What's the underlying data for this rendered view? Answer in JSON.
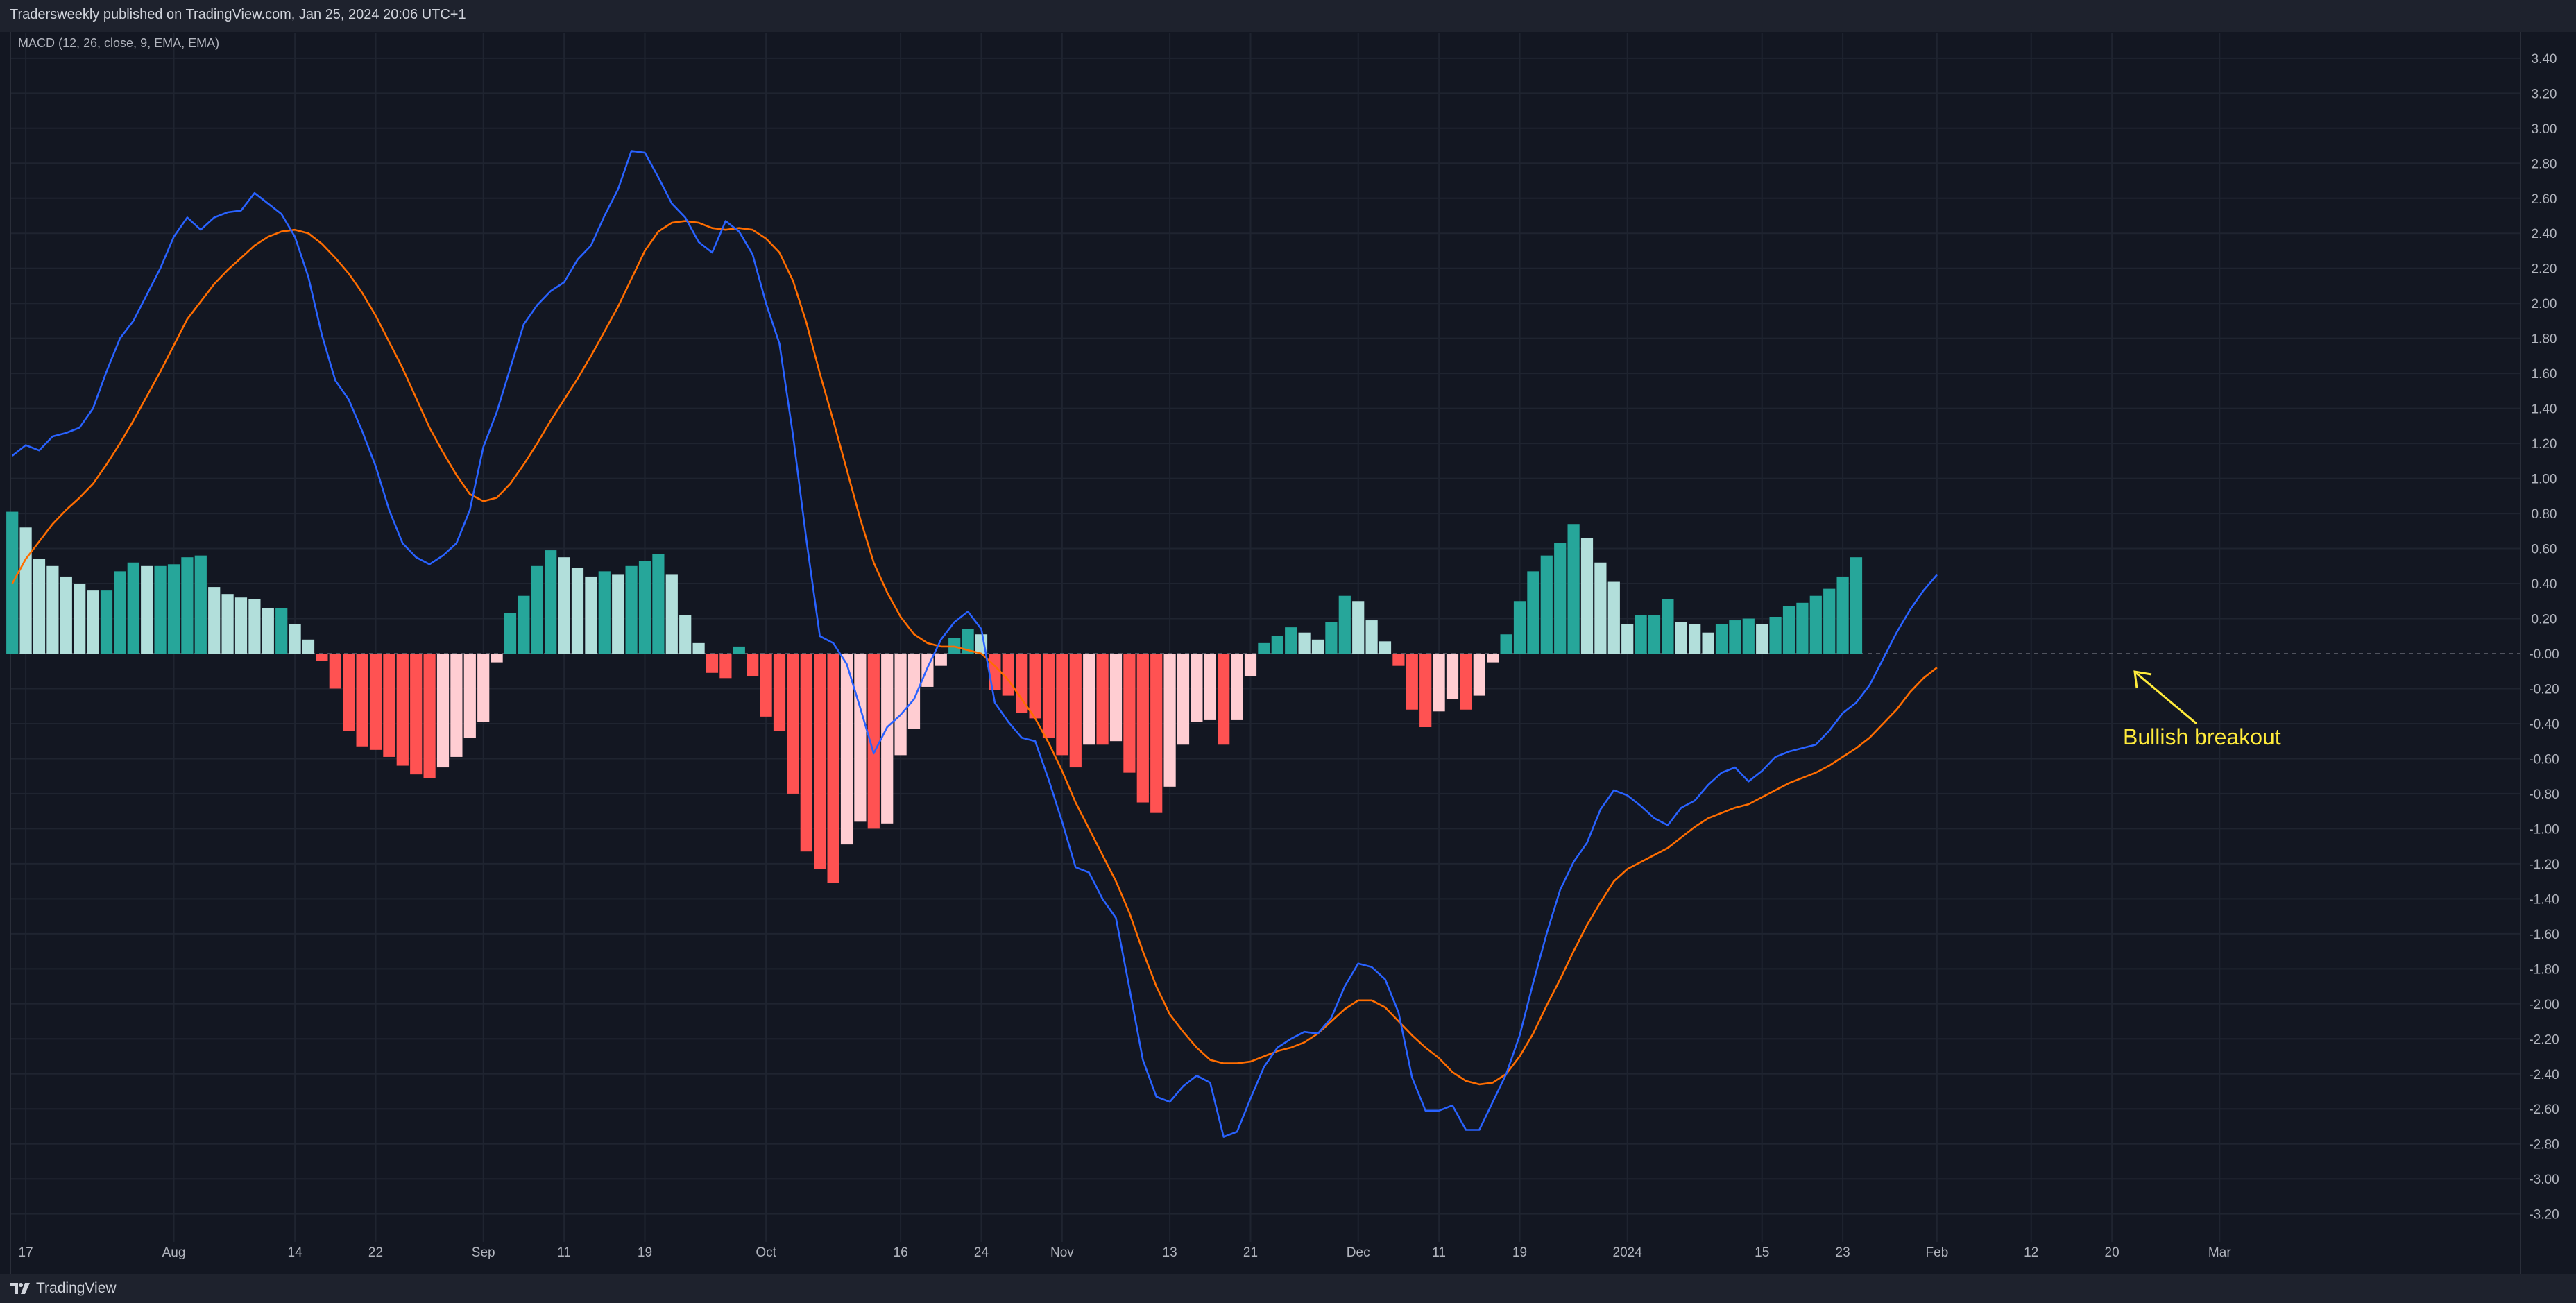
{
  "header": {
    "published": "Tradersweekly published on TradingView.com, Jan 25, 2024 20:06 UTC+1"
  },
  "indicator": {
    "legend": "MACD (12, 26, close, 9, EMA, EMA)"
  },
  "brand": {
    "name": "TradingView"
  },
  "annotation": {
    "text": "Bullish breakout",
    "color": "#ffeb3b"
  },
  "colors": {
    "background": "#131722",
    "macd_line": "#2962ff",
    "signal_line": "#ff6d00",
    "hist_pos_rising": "#26a69a",
    "hist_pos_falling": "#b2dfdb",
    "hist_neg_falling": "#ff5252",
    "hist_neg_rising": "#ffcdd2",
    "axis_text": "#b2b5be",
    "grid": "#1f2430"
  },
  "chart_data": {
    "type": "line",
    "y_ticks": [
      "3.40",
      "3.20",
      "3.00",
      "2.80",
      "2.60",
      "2.40",
      "2.20",
      "2.00",
      "1.80",
      "1.60",
      "1.40",
      "1.20",
      "1.00",
      "0.80",
      "0.60",
      "0.40",
      "0.20",
      "-0.00",
      "-0.20",
      "-0.40",
      "-0.60",
      "-0.80",
      "-1.00",
      "-1.20",
      "-1.40",
      "-1.60",
      "-1.80",
      "-2.00",
      "-2.20",
      "-2.40",
      "-2.60",
      "-2.80",
      "-3.00",
      "-3.20"
    ],
    "ylim": [
      -3.4,
      3.5
    ],
    "x_ticks": [
      {
        "label": "17",
        "bar": 1
      },
      {
        "label": "Aug",
        "bar": 12
      },
      {
        "label": "14",
        "bar": 21
      },
      {
        "label": "22",
        "bar": 27
      },
      {
        "label": "Sep",
        "bar": 35
      },
      {
        "label": "11",
        "bar": 41
      },
      {
        "label": "19",
        "bar": 47
      },
      {
        "label": "Oct",
        "bar": 56
      },
      {
        "label": "16",
        "bar": 66
      },
      {
        "label": "24",
        "bar": 72
      },
      {
        "label": "Nov",
        "bar": 78
      },
      {
        "label": "13",
        "bar": 86
      },
      {
        "label": "21",
        "bar": 92
      },
      {
        "label": "Dec",
        "bar": 100
      },
      {
        "label": "11",
        "bar": 106
      },
      {
        "label": "19",
        "bar": 112
      },
      {
        "label": "2024",
        "bar": 120
      },
      {
        "label": "15",
        "bar": 130
      },
      {
        "label": "23",
        "bar": 136
      },
      {
        "label": "Feb",
        "bar": 143
      },
      {
        "label": "12",
        "bar": 150
      },
      {
        "label": "20",
        "bar": 156
      },
      {
        "label": "Mar",
        "bar": 164
      }
    ],
    "x_range": [
      -0.5,
      164.5
    ],
    "series": [
      {
        "role": "macd",
        "values": [
          1.13,
          1.19,
          1.16,
          1.24,
          1.26,
          1.29,
          1.4,
          1.61,
          1.8,
          1.9,
          2.05,
          2.2,
          2.38,
          2.49,
          2.42,
          2.49,
          2.52,
          2.53,
          2.63,
          2.57,
          2.51,
          2.38,
          2.15,
          1.82,
          1.56,
          1.45,
          1.27,
          1.07,
          0.82,
          0.63,
          0.55,
          0.51,
          0.56,
          0.63,
          0.82,
          1.18,
          1.38,
          1.63,
          1.88,
          1.99,
          2.07,
          2.12,
          2.25,
          2.33,
          2.5,
          2.65,
          2.87,
          2.86,
          2.72,
          2.57,
          2.49,
          2.35,
          2.29,
          2.47,
          2.41,
          2.28,
          2.0,
          1.77,
          1.25,
          0.65,
          0.1,
          0.06,
          -0.06,
          -0.31,
          -0.57,
          -0.42,
          -0.35,
          -0.26,
          -0.08,
          0.08,
          0.18,
          0.24,
          0.14,
          -0.28,
          -0.39,
          -0.48,
          -0.5,
          -0.72,
          -0.96,
          -1.22,
          -1.25,
          -1.4,
          -1.51,
          -1.91,
          -2.32,
          -2.53,
          -2.56,
          -2.47,
          -2.41,
          -2.45,
          -2.76,
          -2.73,
          -2.54,
          -2.36,
          -2.25,
          -2.2,
          -2.16,
          -2.17,
          -2.08,
          -1.9,
          -1.77,
          -1.79,
          -1.86,
          -2.05,
          -2.42,
          -2.61,
          -2.61,
          -2.58,
          -2.72,
          -2.72,
          -2.56,
          -2.4,
          -2.18,
          -1.88,
          -1.6,
          -1.35,
          -1.19,
          -1.08,
          -0.89,
          -0.78,
          -0.81,
          -0.87,
          -0.94,
          -0.98,
          -0.88,
          -0.84,
          -0.75,
          -0.68,
          -0.65,
          -0.73,
          -0.67,
          -0.59,
          -0.56,
          -0.54,
          -0.52,
          -0.44,
          -0.34,
          -0.28,
          -0.18,
          -0.03,
          0.12,
          0.25,
          0.36,
          0.45
        ]
      },
      {
        "role": "signal",
        "values": [
          0.4,
          0.54,
          0.64,
          0.74,
          0.82,
          0.89,
          0.97,
          1.08,
          1.2,
          1.33,
          1.47,
          1.61,
          1.76,
          1.91,
          2.01,
          2.11,
          2.19,
          2.26,
          2.33,
          2.38,
          2.41,
          2.42,
          2.4,
          2.34,
          2.26,
          2.17,
          2.06,
          1.93,
          1.78,
          1.63,
          1.46,
          1.29,
          1.15,
          1.02,
          0.91,
          0.87,
          0.89,
          0.97,
          1.08,
          1.2,
          1.33,
          1.45,
          1.57,
          1.7,
          1.84,
          1.98,
          2.14,
          2.3,
          2.41,
          2.46,
          2.47,
          2.46,
          2.43,
          2.42,
          2.43,
          2.42,
          2.37,
          2.29,
          2.13,
          1.89,
          1.6,
          1.33,
          1.05,
          0.77,
          0.52,
          0.35,
          0.21,
          0.11,
          0.06,
          0.04,
          0.04,
          0.02,
          0.0,
          -0.07,
          -0.15,
          -0.26,
          -0.37,
          -0.51,
          -0.67,
          -0.85,
          -1.0,
          -1.15,
          -1.3,
          -1.48,
          -1.7,
          -1.9,
          -2.06,
          -2.16,
          -2.25,
          -2.32,
          -2.34,
          -2.34,
          -2.33,
          -2.3,
          -2.27,
          -2.25,
          -2.22,
          -2.17,
          -2.1,
          -2.03,
          -1.98,
          -1.98,
          -2.02,
          -2.1,
          -2.18,
          -2.25,
          -2.31,
          -2.39,
          -2.44,
          -2.46,
          -2.45,
          -2.4,
          -2.3,
          -2.17,
          -2.01,
          -1.86,
          -1.7,
          -1.55,
          -1.42,
          -1.3,
          -1.23,
          -1.19,
          -1.15,
          -1.11,
          -1.05,
          -0.99,
          -0.94,
          -0.91,
          -0.88,
          -0.86,
          -0.82,
          -0.78,
          -0.74,
          -0.71,
          -0.68,
          -0.64,
          -0.59,
          -0.54,
          -0.48,
          -0.4,
          -0.32,
          -0.22,
          -0.14,
          -0.08
        ]
      },
      {
        "role": "histogram",
        "type": "bar",
        "values": [
          0.81,
          0.72,
          0.54,
          0.5,
          0.44,
          0.4,
          0.36,
          0.36,
          0.47,
          0.52,
          0.5,
          0.5,
          0.51,
          0.55,
          0.56,
          0.38,
          0.34,
          0.32,
          0.31,
          0.26,
          0.26,
          0.17,
          0.08,
          -0.04,
          -0.2,
          -0.44,
          -0.53,
          -0.55,
          -0.59,
          -0.64,
          -0.69,
          -0.71,
          -0.65,
          -0.59,
          -0.48,
          -0.39,
          -0.05,
          0.23,
          0.33,
          0.5,
          0.59,
          0.55,
          0.49,
          0.44,
          0.47,
          0.45,
          0.5,
          0.53,
          0.57,
          0.45,
          0.22,
          0.06,
          -0.11,
          -0.14,
          0.04,
          -0.13,
          -0.36,
          -0.44,
          -0.8,
          -1.13,
          -1.23,
          -1.31,
          -1.09,
          -0.96,
          -1.0,
          -0.97,
          -0.58,
          -0.43,
          -0.19,
          -0.07,
          0.09,
          0.14,
          0.11,
          -0.21,
          -0.24,
          -0.34,
          -0.37,
          -0.48,
          -0.58,
          -0.65,
          -0.52,
          -0.52,
          -0.5,
          -0.68,
          -0.85,
          -0.91,
          -0.76,
          -0.52,
          -0.39,
          -0.38,
          -0.52,
          -0.38,
          -0.13,
          0.06,
          0.1,
          0.15,
          0.12,
          0.08,
          0.18,
          0.33,
          0.3,
          0.19,
          0.07,
          -0.07,
          -0.32,
          -0.42,
          -0.33,
          -0.26,
          -0.32,
          -0.24,
          -0.05,
          0.11,
          0.3,
          0.47,
          0.56,
          0.63,
          0.74,
          0.66,
          0.52,
          0.41,
          0.17,
          0.22,
          0.22,
          0.31,
          0.18,
          0.17,
          0.12,
          0.17,
          0.19,
          0.2,
          0.17,
          0.21,
          0.27,
          0.29,
          0.33,
          0.37,
          0.44,
          0.55
        ]
      }
    ],
    "grid": true,
    "legend": "top-left"
  }
}
